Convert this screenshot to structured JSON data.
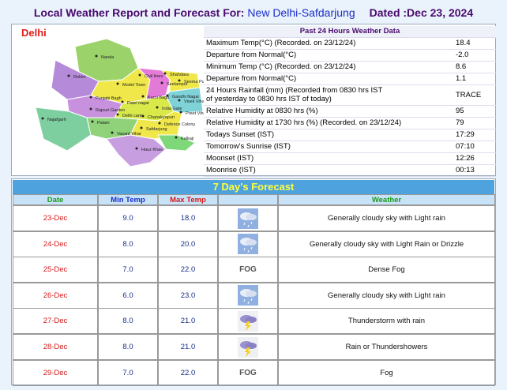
{
  "header": {
    "title": "Local Weather Report and Forecast For:",
    "station": "New Delhi-Safdarjung",
    "dated": "Dated :Dec 23, 2024"
  },
  "map": {
    "title": "Delhi",
    "labels": [
      "Narela",
      "Rohini",
      "Model Town",
      "Civil lines",
      "Shahdara",
      "Seelampur",
      "Seema Puri",
      "Punjabi Bagh",
      "Patel nagar",
      "Karol Bagh",
      "Gandhi Nagar",
      "Vivek Vihar",
      "Rajouri Garden",
      "Delhi cant",
      "India Gate",
      "Chanakyapuri",
      "Preet Vihar",
      "Najafgarh",
      "Palam",
      "Vasant Vihar",
      "Defence Colony",
      "Safdarjung",
      "Kalkaji",
      "Hauz Khas"
    ]
  },
  "past24": {
    "title": "Past 24 Hours Weather Data",
    "rows": [
      {
        "label": "Maximum Temp(°C) (Recorded. on 23/12/24)",
        "value": "18.4"
      },
      {
        "label": "Departure from Normal(°C)",
        "value": "-2.0"
      },
      {
        "label": "Minimum Temp (°C) (Recorded. on 23/12/24)",
        "value": "8.6"
      },
      {
        "label": "Departure from Normal(°C)",
        "value": "1.1"
      },
      {
        "label": "24 Hours Rainfall (mm) (Recorded from 0830 hrs IST\nof yesterday to 0830 hrs IST of today)",
        "value": "TRACE"
      },
      {
        "label": "Relative Humidity at 0830 hrs (%)",
        "value": "95"
      },
      {
        "label": "Relative Humidity at 1730 hrs (%) (Recorded. on 23/12/24)",
        "value": "79"
      },
      {
        "label": "Todays Sunset (IST)",
        "value": "17:29"
      },
      {
        "label": "Tomorrow's Sunrise (IST)",
        "value": "07:10"
      },
      {
        "label": "Moonset (IST)",
        "value": "12:26"
      },
      {
        "label": "Moonrise (IST)",
        "value": "00:13"
      }
    ]
  },
  "forecast": {
    "title": "7 Day's Forecast",
    "columns": [
      "Date",
      "Min Temp",
      "Max Temp",
      "Weather"
    ],
    "rows": [
      {
        "date": "23-Dec",
        "min": "9.0",
        "max": "18.0",
        "icon": "rain",
        "weather": "Generally cloudy sky with Light rain"
      },
      {
        "date": "24-Dec",
        "min": "8.0",
        "max": "20.0",
        "icon": "rain",
        "weather": "Generally cloudy sky with Light Rain or Drizzle"
      },
      {
        "date": "25-Dec",
        "min": "7.0",
        "max": "22.0",
        "icon": "fog",
        "icon_text": "FOG",
        "weather": "Dense Fog"
      },
      {
        "date": "26-Dec",
        "min": "6.0",
        "max": "23.0",
        "icon": "rain",
        "weather": "Generally cloudy sky with Light rain"
      },
      {
        "date": "27-Dec",
        "min": "8.0",
        "max": "21.0",
        "icon": "thunder",
        "weather": "Thunderstorm with rain"
      },
      {
        "date": "28-Dec",
        "min": "8.0",
        "max": "21.0",
        "icon": "thunder",
        "weather": "Rain or Thundershowers"
      },
      {
        "date": "29-Dec",
        "min": "7.0",
        "max": "22.0",
        "icon": "fog",
        "icon_text": "FOG",
        "weather": "Fog"
      }
    ]
  }
}
